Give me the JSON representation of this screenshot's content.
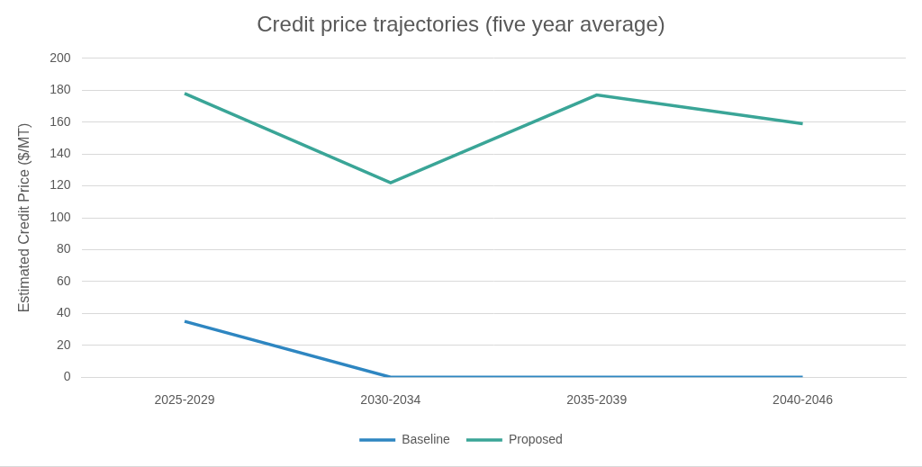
{
  "chart_data": {
    "type": "line",
    "title": "Credit price trajectories (five year average)",
    "y_label": "Estimated Credit Price ($/MT)",
    "categories": [
      "2025-2029",
      "2030-2034",
      "2035-2039",
      "2040-2046"
    ],
    "series": [
      {
        "name": "Baseline",
        "color": "#2e86c1",
        "values": [
          35,
          0,
          0,
          0
        ]
      },
      {
        "name": "Proposed",
        "color": "#3aa597",
        "values": [
          178,
          122,
          177,
          159
        ]
      }
    ],
    "ylim": [
      0,
      200
    ],
    "yticks": [
      0,
      20,
      40,
      60,
      80,
      100,
      120,
      140,
      160,
      180,
      200
    ],
    "grid": true,
    "legend": "bottom"
  }
}
